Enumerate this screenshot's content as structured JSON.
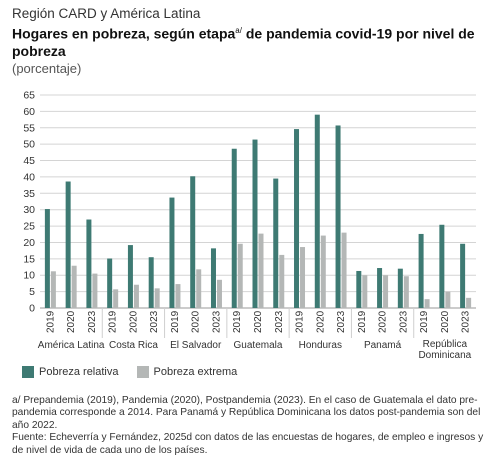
{
  "header": {
    "region": "Región CARD y América Latina",
    "title_part1": "Hogares en pobreza, según etapa",
    "title_sup": "a/",
    "title_part2": " de pandemia covid-19 por nivel de pobreza",
    "unit": "(porcentaje)"
  },
  "colors": {
    "relativa": "#3e7a73",
    "extrema": "#b4b7b6",
    "grid": "#d4d4d4",
    "axis": "#9a9a9a"
  },
  "chart_data": {
    "type": "bar",
    "groups": [
      "América Latina",
      "Costa Rica",
      "El Salvador",
      "Guatemala",
      "Honduras",
      "Panamá",
      "República Dominicana"
    ],
    "years": [
      "2019",
      "2020",
      "2023"
    ],
    "series": [
      {
        "name": "Pobreza relativa",
        "values": [
          [
            30.2,
            38.6,
            27.0
          ],
          [
            15.1,
            19.2,
            15.5
          ],
          [
            33.7,
            40.2,
            18.2
          ],
          [
            48.6,
            51.4,
            39.5
          ],
          [
            54.6,
            59.0,
            55.7
          ],
          [
            11.3,
            12.2,
            12.0
          ],
          [
            22.6,
            25.4,
            19.6
          ]
        ]
      },
      {
        "name": "Pobreza extrema",
        "values": [
          [
            11.2,
            12.9,
            10.5
          ],
          [
            5.7,
            7.1,
            6.0
          ],
          [
            7.3,
            11.8,
            8.6
          ],
          [
            19.6,
            22.7,
            16.2
          ],
          [
            18.6,
            22.1,
            23.0
          ],
          [
            10.0,
            10.0,
            9.7
          ],
          [
            2.7,
            5.0,
            3.1
          ]
        ]
      }
    ],
    "y_ticks": [
      "0",
      "5",
      "10",
      "15",
      "20",
      "25",
      "30",
      "35",
      "40",
      "45",
      "50",
      "55",
      "60",
      "65"
    ],
    "ylim": [
      0,
      65
    ],
    "grid": true,
    "legend_position": "bottom-left"
  },
  "notes": {
    "note_a": "a/ Prepandemia (2019), Pandemia (2020), Postpandemia (2023). En el caso de Guatemala el dato pre-pandemia corresponde a 2014. Para Panamá y República Dominicana los datos post-pandemia son del año 2022.",
    "source": "Fuente: Echeverría y Fernández, 2025d con datos de las encuestas de hogares, de empleo e ingresos y de nivel de vida de cada uno de los países."
  }
}
